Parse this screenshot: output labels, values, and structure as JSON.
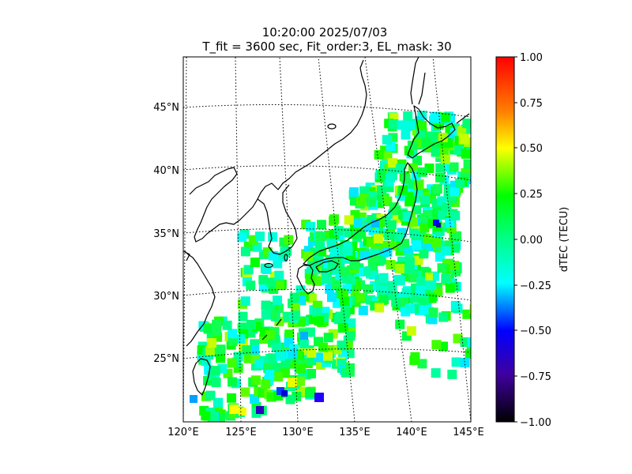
{
  "figure": {
    "title_line1": "10:20:00 2025/07/03",
    "title_line2": "T_fit = 3600 sec, Fit_order:3, EL_mask: 30"
  },
  "map": {
    "lon_labels": [
      "120°E",
      "125°E",
      "130°E",
      "135°E",
      "140°E",
      "145°E"
    ],
    "lat_labels": [
      "25°N",
      "30°N",
      "35°N",
      "40°N",
      "45°N"
    ],
    "lon_range": [
      120,
      145
    ],
    "lat_range": [
      20,
      49
    ],
    "gridlines": "dotted",
    "coastline_color": "#000000"
  },
  "colorbar": {
    "label": "dTEC (TECU)",
    "range": [
      -1.0,
      1.0
    ],
    "tick_labels": [
      "1.00",
      "0.75",
      "0.50",
      "0.25",
      "0.00",
      "−0.25",
      "−0.50",
      "−0.75",
      "−1.00"
    ],
    "colormap": "nipy_spectral-like",
    "stops": [
      {
        "v": 0.0,
        "c": "#ff0000"
      },
      {
        "v": 0.15,
        "c": "#ff8000"
      },
      {
        "v": 0.25,
        "c": "#ffff00"
      },
      {
        "v": 0.38,
        "c": "#00ff00"
      },
      {
        "v": 0.5,
        "c": "#00ff88"
      },
      {
        "v": 0.62,
        "c": "#00ffff"
      },
      {
        "v": 0.75,
        "c": "#0000ff"
      },
      {
        "v": 0.87,
        "c": "#4000a0"
      },
      {
        "v": 1.0,
        "c": "#000000"
      }
    ]
  }
}
